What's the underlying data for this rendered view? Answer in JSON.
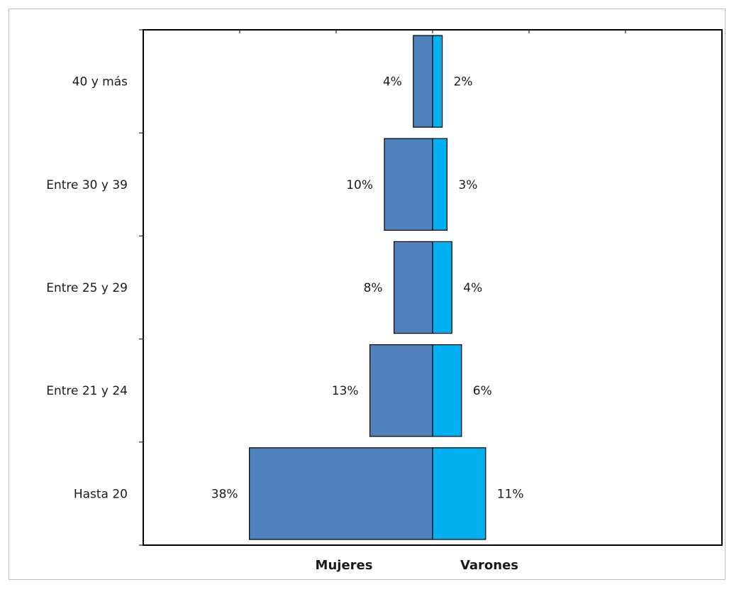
{
  "chart_data": {
    "type": "bar",
    "orientation": "horizontal-population-pyramid",
    "categories": [
      "40 y más",
      "Entre 30 y 39",
      "Entre 25 y 29",
      "Entre 21 y 24",
      "Hasta 20"
    ],
    "series": [
      {
        "name": "Mujeres",
        "values": [
          4,
          10,
          8,
          13,
          38
        ],
        "labels": [
          "4%",
          "10%",
          "8%",
          "13%",
          "38%"
        ],
        "color": "#4f81bd"
      },
      {
        "name": "Varones",
        "values": [
          2,
          3,
          4,
          6,
          11
        ],
        "labels": [
          "2%",
          "3%",
          "4%",
          "6%",
          "11%"
        ],
        "color": "#00b0f0"
      }
    ],
    "xlim": [
      -60,
      60
    ],
    "unit": "%",
    "grid": false,
    "legend_placement": "bottom"
  }
}
